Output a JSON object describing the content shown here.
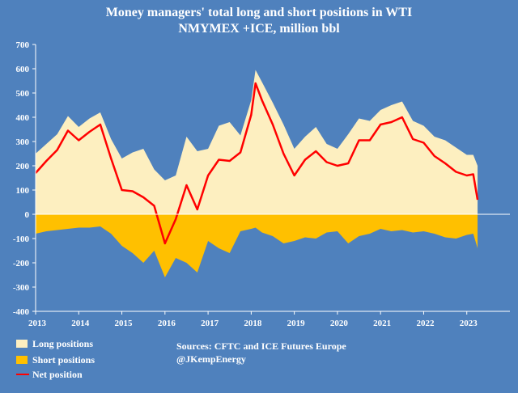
{
  "chart_data": {
    "type": "area",
    "title": "Money managers' total long and short positions in WTI",
    "subtitle": "NMYMEX +ICE, million bbl",
    "xlabel": "",
    "ylabel": "",
    "ylim": [
      -400,
      700
    ],
    "xlim": [
      2013,
      2024
    ],
    "y_ticks": [
      "700",
      "600",
      "500",
      "400",
      "300",
      "200",
      "100",
      "0",
      "-100",
      "-200",
      "-300",
      "-400"
    ],
    "x_ticks": [
      "2013",
      "2014",
      "2015",
      "2016",
      "2017",
      "2018",
      "2019",
      "2020",
      "2021",
      "2022",
      "2023"
    ],
    "grid": false,
    "legend_position": "bottom-left",
    "series": [
      {
        "name": "Long positions",
        "color": "#fdefc0",
        "x": [
          2013.0,
          2013.25,
          2013.5,
          2013.75,
          2014.0,
          2014.25,
          2014.5,
          2014.75,
          2015.0,
          2015.25,
          2015.5,
          2015.75,
          2016.0,
          2016.25,
          2016.5,
          2016.75,
          2017.0,
          2017.25,
          2017.5,
          2017.75,
          2018.0,
          2018.1,
          2018.25,
          2018.5,
          2018.75,
          2019.0,
          2019.25,
          2019.5,
          2019.75,
          2020.0,
          2020.25,
          2020.5,
          2020.75,
          2021.0,
          2021.25,
          2021.5,
          2021.75,
          2022.0,
          2022.25,
          2022.5,
          2022.75,
          2023.0,
          2023.15,
          2023.25
        ],
        "values": [
          250,
          290,
          330,
          405,
          360,
          395,
          420,
          310,
          230,
          255,
          270,
          185,
          140,
          160,
          320,
          260,
          270,
          365,
          380,
          325,
          470,
          595,
          545,
          460,
          370,
          270,
          320,
          360,
          290,
          270,
          330,
          395,
          385,
          430,
          450,
          465,
          385,
          365,
          320,
          305,
          275,
          245,
          245,
          200
        ]
      },
      {
        "name": "Short positions",
        "color": "#ffc000",
        "x": [
          2013.0,
          2013.25,
          2013.5,
          2013.75,
          2014.0,
          2014.25,
          2014.5,
          2014.75,
          2015.0,
          2015.25,
          2015.5,
          2015.75,
          2016.0,
          2016.25,
          2016.5,
          2016.75,
          2017.0,
          2017.25,
          2017.5,
          2017.75,
          2018.0,
          2018.1,
          2018.25,
          2018.5,
          2018.75,
          2019.0,
          2019.25,
          2019.5,
          2019.75,
          2020.0,
          2020.25,
          2020.5,
          2020.75,
          2021.0,
          2021.25,
          2021.5,
          2021.75,
          2022.0,
          2022.25,
          2022.5,
          2022.75,
          2023.0,
          2023.15,
          2023.25
        ],
        "values": [
          -80,
          -70,
          -65,
          -60,
          -55,
          -55,
          -50,
          -80,
          -130,
          -160,
          -200,
          -150,
          -260,
          -180,
          -200,
          -240,
          -110,
          -140,
          -160,
          -70,
          -60,
          -55,
          -75,
          -90,
          -120,
          -110,
          -95,
          -100,
          -75,
          -70,
          -120,
          -90,
          -80,
          -60,
          -70,
          -65,
          -75,
          -70,
          -80,
          -95,
          -100,
          -85,
          -80,
          -140
        ]
      },
      {
        "name": "Net position",
        "color": "#ff0000",
        "x": [
          2013.0,
          2013.25,
          2013.5,
          2013.75,
          2014.0,
          2014.25,
          2014.5,
          2014.75,
          2015.0,
          2015.25,
          2015.5,
          2015.75,
          2016.0,
          2016.25,
          2016.5,
          2016.75,
          2017.0,
          2017.25,
          2017.5,
          2017.75,
          2018.0,
          2018.1,
          2018.25,
          2018.5,
          2018.75,
          2019.0,
          2019.25,
          2019.5,
          2019.75,
          2020.0,
          2020.25,
          2020.5,
          2020.75,
          2021.0,
          2021.25,
          2021.5,
          2021.75,
          2022.0,
          2022.25,
          2022.5,
          2022.75,
          2023.0,
          2023.15,
          2023.25
        ],
        "values": [
          170,
          220,
          265,
          345,
          305,
          340,
          370,
          230,
          100,
          95,
          70,
          35,
          -120,
          -20,
          120,
          20,
          160,
          225,
          220,
          255,
          410,
          540,
          470,
          370,
          250,
          160,
          225,
          260,
          215,
          200,
          210,
          305,
          305,
          370,
          380,
          400,
          310,
          295,
          240,
          210,
          175,
          160,
          165,
          60
        ]
      }
    ],
    "legend": [
      "Long positions",
      "Short positions",
      "Net position"
    ],
    "annotations": [
      "Sources: CFTC and ICE Futures Europe",
      "@JKempEnergy"
    ]
  }
}
